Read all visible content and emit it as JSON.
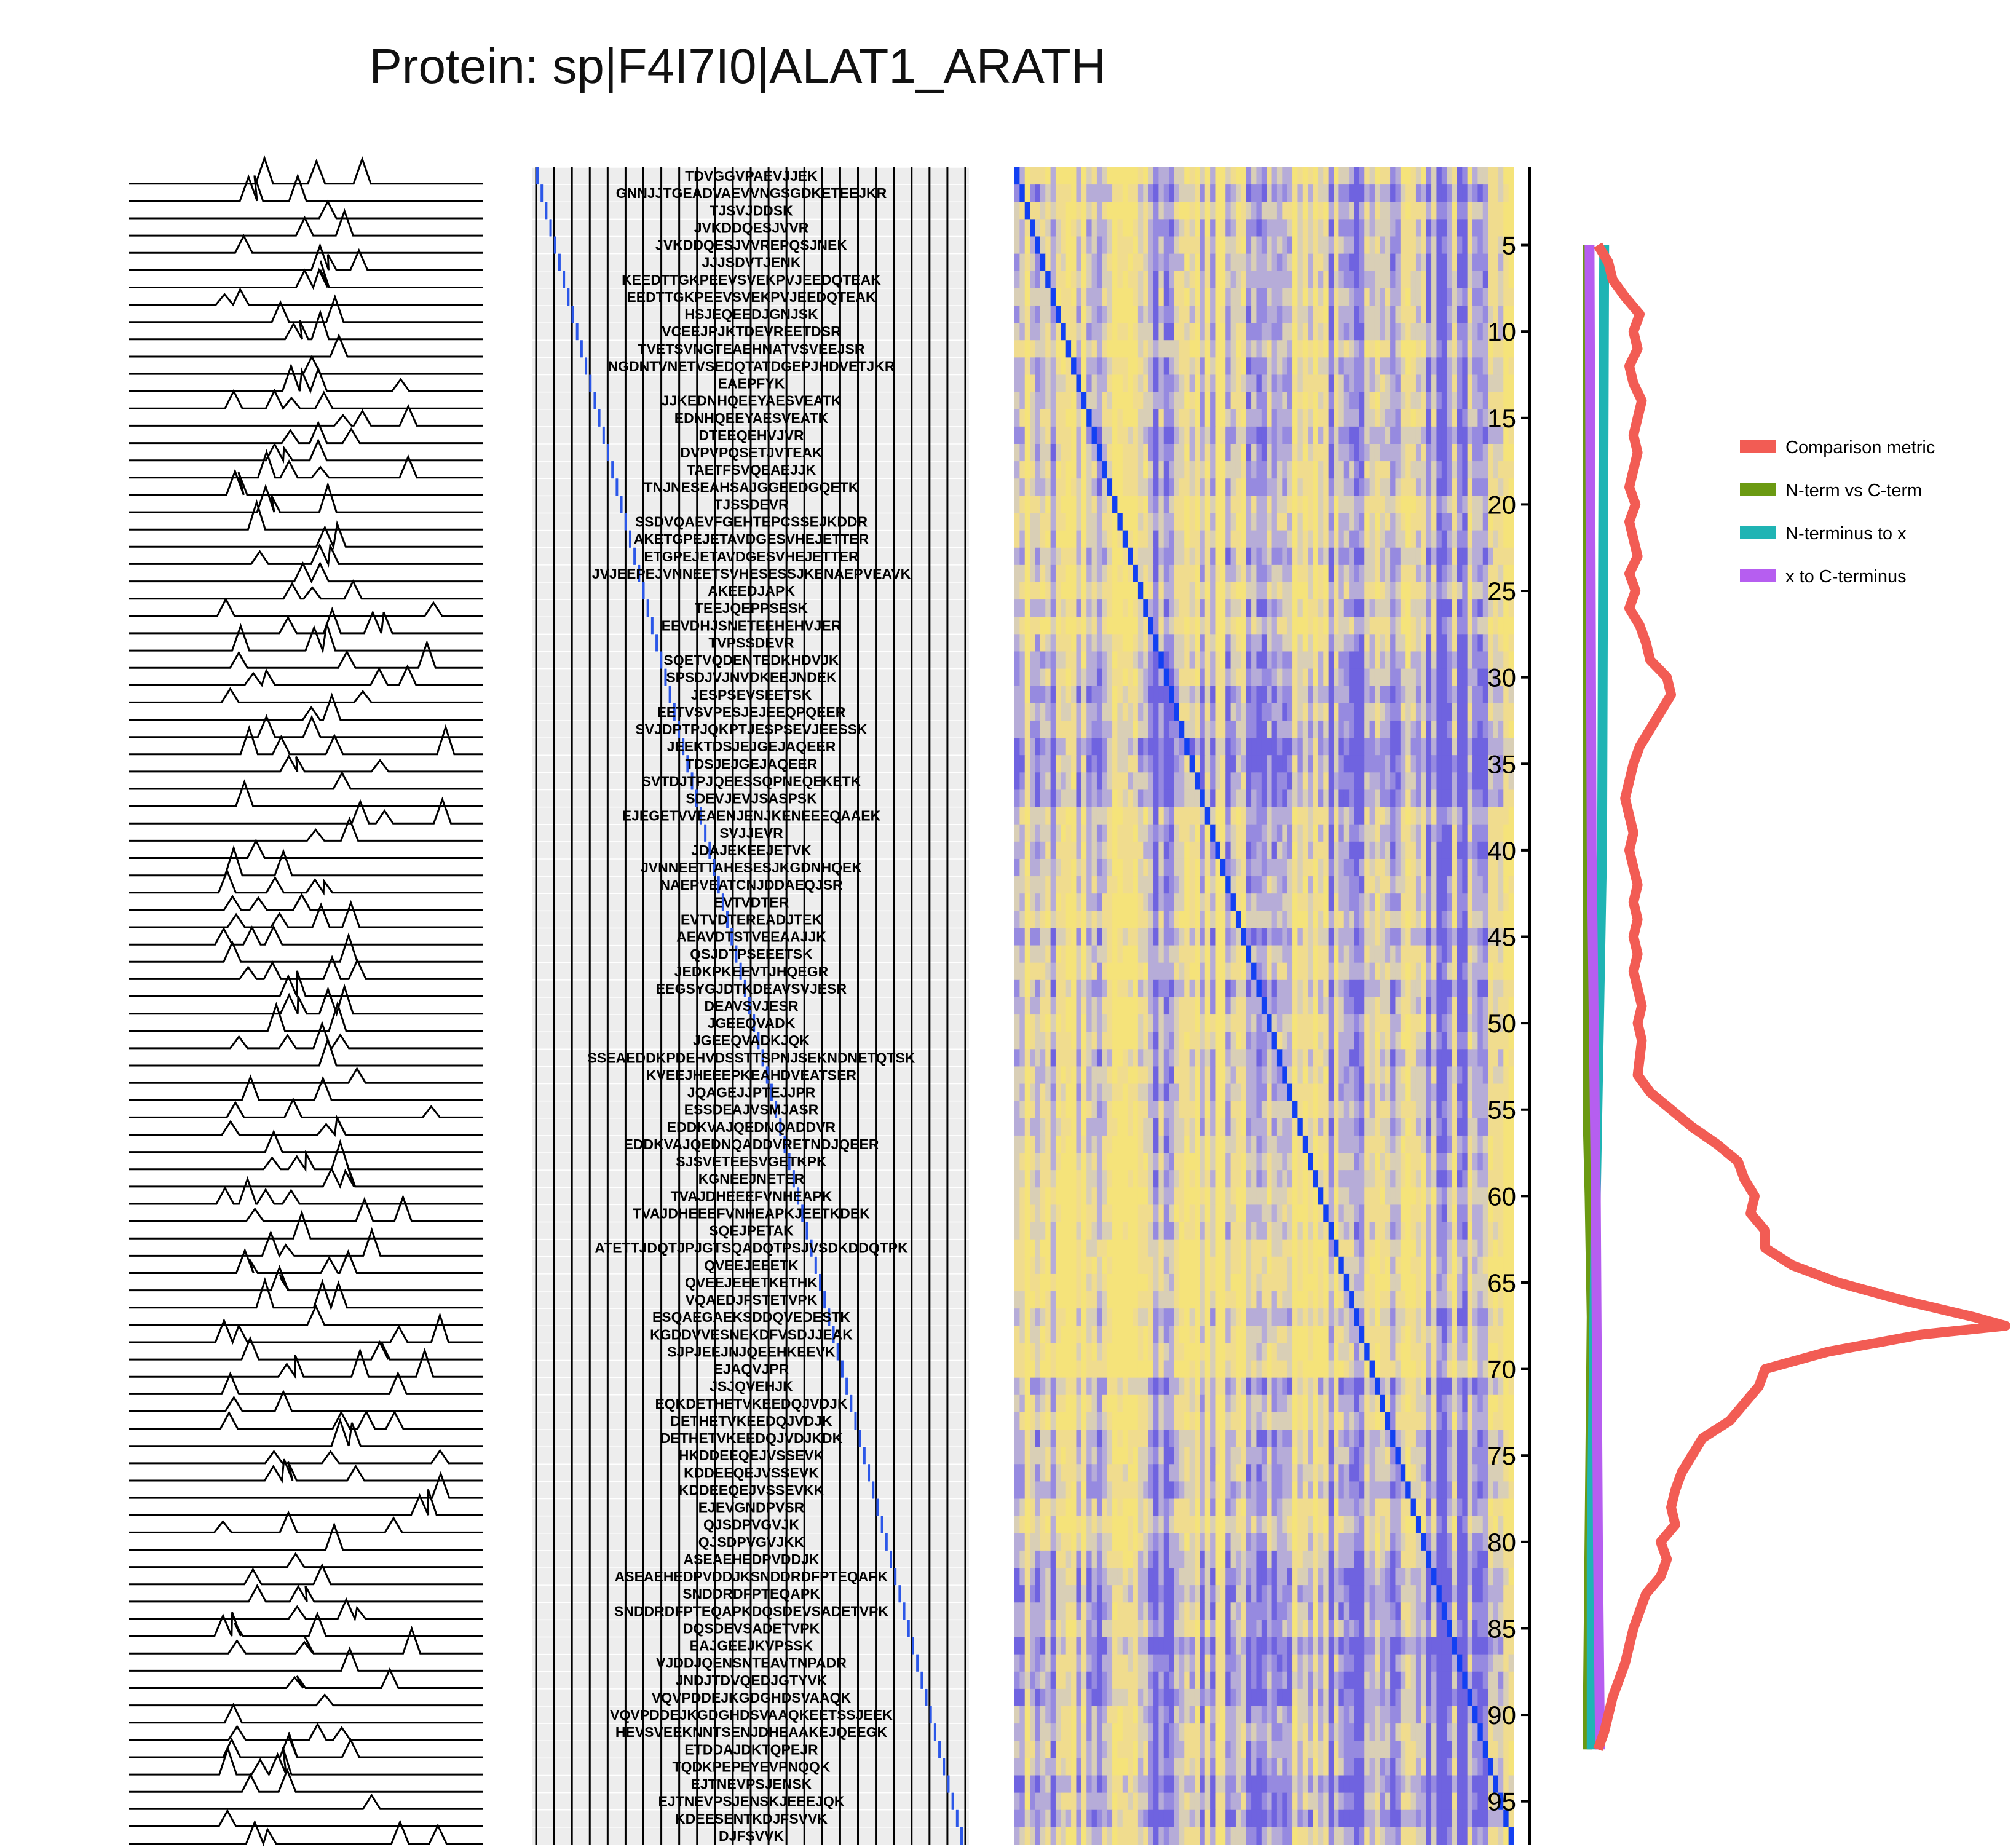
{
  "chart_data": {
    "type": "heatmap",
    "title": "Protein: sp|F4I7I0|ALAT1_ARATH",
    "peptides": [
      "TDVGGVPAEVJJEK",
      "GNNJJTGEADVAEVVNGSGDKETEEJKR",
      "TJSVJDDSK",
      "JVKDDQESJVVR",
      "JVKDDQESJVVREPQSJNEK",
      "JJJSDVTJENK",
      "KEEDTTGKPEEVSVEKPVJEEDQTEAK",
      "EEDTTGKPEEVSVEKPVJEEDQTEAK",
      "HSJEQEEDJGNJSK",
      "VCEEJPJKTDEVREETDSR",
      "TVETSVNGTEAEHNATVSVEEJSR",
      "NGDNTVNETVSEDQTATDGEPJHDVETJKR",
      "EAEPFYK",
      "JJKEDNHQEEYAESVEATK",
      "EDNHQEEYAESVEATK",
      "DTEEQEHVJVR",
      "DVPVPQSETJVTEAK",
      "TAETFSVQEAEJJK",
      "TNJNESEAHSAJGGEEDGQETK",
      "TJSSDEVR",
      "SSDVQAEVFGEHTEPCSSEJKDDR",
      "AKETGPEJETAVDGESVHEJETTER",
      "ETGPEJETAVDGESVHEJETTER",
      "JVJEEPEJVNNEETSVHESESSJKENAEPVEAVK",
      "AKEEDJAPK",
      "TEEJQEPPSESK",
      "EEVDHJSNETEEHEHVJER",
      "TVPSSDEVR",
      "SQETVQDENTEDKHDVJK",
      "SPSDJVJNVDKEEJNDEK",
      "JESPSEVSEETSK",
      "EETVSVPESJEJEEQPQEER",
      "SVJDPTPJQKPTJESPSEVJEESSK",
      "JEEKTDSJEJGEJAQEER",
      "TDSJEJGEJAQEER",
      "SVTDJTPJQEESSQPNEQEKETK",
      "SDEVJEVJSASPSK",
      "EJEGETVVEAENJENJKENEEEQAAEK",
      "SVJJEVR",
      "JDAJEKEEJETVK",
      "JVNNEETTAHESESJKGDNHQEK",
      "NAEPVEATCNJDDAEQJSR",
      "EVTVDTER",
      "EVTVDTEREADJTEK",
      "AEAVDTSTVEEAAJJK",
      "QSJDTPSEEETSK",
      "JEDKPKEEVTJHQEGR",
      "EEGSYGJDTKDEAVSVJESR",
      "DEAVSVJESR",
      "JGEEQVADK",
      "JGEEQVADKJQK",
      "SSEAEDDKPDEHVDSSTTSPNJSEKNDNETQTSK",
      "KVEEJHEEEPKEAHDVEATSER",
      "JQAGEJJPTEJJPR",
      "ESSDEAJVSMJASR",
      "EDDKVAJQEDNQADDVR",
      "EDDKVAJQEDNQADDVRETNDJQEER",
      "SJSVETEESVGETKPK",
      "KGNEEJNETER",
      "TVAJDHEEEFVNHEAPK",
      "TVAJDHEEEFVNHEAPKJEETKDEK",
      "SQEJPETAK",
      "ATETTJDQTJPJGTSQADQTPSJVSDKDDQTPK",
      "QVEEJEEETK",
      "QVEEJEEETKETHK",
      "VQAEDJFSTETVPK",
      "ESQAEGAEKSDDQVEDESTK",
      "KGDDVVESNEKDFVSDJJEAK",
      "SJPJEEJNJQEEHKEEVK",
      "EJAQVJPR",
      "JSJQVEHJK",
      "EQKDETHETVKEEDQJVDJK",
      "DETHETVKEEDQJVDJK",
      "DETHETVKEEDQJVDJKDK",
      "HKDDEEQEJVSSEVK",
      "KDDEEQEJVSSEVK",
      "KDDEEQEJVSSEVKK",
      "EJEVGNDPVSR",
      "QJSDPVGVJK",
      "QJSDPVGVJKK",
      "ASEAEHEDPVDDJK",
      "ASEAEHEDPVDDJKSNDDRDFPTEQAPK",
      "SNDDRDFPTEQAPK",
      "SNDDRDFPTEQAPKDQSDEVSADETVPK",
      "DQSDEVSADETVPK",
      "EAJGEEJKVPSSK",
      "VJDDJQENSNTEAVTNPADR",
      "JNDJTDVQEDJGTYVK",
      "VQVPDDEJKGDGHDSVAAQK",
      "VQVPDDEJKGDGHDSVAAQKEETSSJEEK",
      "HEVSVEEKNNTSENJDHEAAKEJQEEGK",
      "ETDDAJDKTQPEJR",
      "TQDKPEPEYEVPNQQK",
      "EJTNEVPSJENSK",
      "EJTNEVPSJENSKJEEEJQK",
      "KDEESENTKDJFSVVK",
      "DJFSVVK"
    ],
    "y_ticks": [
      5,
      10,
      15,
      20,
      25,
      30,
      35,
      40,
      45,
      50,
      55,
      60,
      65,
      70,
      75,
      80,
      85,
      90,
      95
    ],
    "ylim": [
      1,
      97
    ],
    "heatmap_colors": {
      "low": "#f5e37a",
      "mid": "#b6acd8",
      "high": "#6f63e0",
      "diagonal": "#1240f2"
    },
    "series": [
      {
        "name": "Comparison metric",
        "color": "#f25c54",
        "values": [
          {
            "y": 5,
            "x": 0.05
          },
          {
            "y": 6,
            "x": 0.1
          },
          {
            "y": 7,
            "x": 0.12
          },
          {
            "y": 8,
            "x": 0.18
          },
          {
            "y": 9,
            "x": 0.25
          },
          {
            "y": 10,
            "x": 0.22
          },
          {
            "y": 11,
            "x": 0.24
          },
          {
            "y": 12,
            "x": 0.2
          },
          {
            "y": 13,
            "x": 0.22
          },
          {
            "y": 14,
            "x": 0.26
          },
          {
            "y": 15,
            "x": 0.24
          },
          {
            "y": 16,
            "x": 0.22
          },
          {
            "y": 17,
            "x": 0.24
          },
          {
            "y": 18,
            "x": 0.22
          },
          {
            "y": 19,
            "x": 0.2
          },
          {
            "y": 20,
            "x": 0.23
          },
          {
            "y": 21,
            "x": 0.2
          },
          {
            "y": 22,
            "x": 0.22
          },
          {
            "y": 23,
            "x": 0.24
          },
          {
            "y": 24,
            "x": 0.2
          },
          {
            "y": 25,
            "x": 0.23
          },
          {
            "y": 26,
            "x": 0.2
          },
          {
            "y": 27,
            "x": 0.25
          },
          {
            "y": 28,
            "x": 0.28
          },
          {
            "y": 29,
            "x": 0.3
          },
          {
            "y": 30,
            "x": 0.38
          },
          {
            "y": 31,
            "x": 0.4
          },
          {
            "y": 32,
            "x": 0.35
          },
          {
            "y": 33,
            "x": 0.3
          },
          {
            "y": 34,
            "x": 0.25
          },
          {
            "y": 35,
            "x": 0.22
          },
          {
            "y": 36,
            "x": 0.2
          },
          {
            "y": 37,
            "x": 0.18
          },
          {
            "y": 38,
            "x": 0.2
          },
          {
            "y": 39,
            "x": 0.22
          },
          {
            "y": 40,
            "x": 0.2
          },
          {
            "y": 41,
            "x": 0.22
          },
          {
            "y": 42,
            "x": 0.24
          },
          {
            "y": 43,
            "x": 0.22
          },
          {
            "y": 44,
            "x": 0.24
          },
          {
            "y": 45,
            "x": 0.22
          },
          {
            "y": 46,
            "x": 0.24
          },
          {
            "y": 47,
            "x": 0.22
          },
          {
            "y": 48,
            "x": 0.24
          },
          {
            "y": 49,
            "x": 0.26
          },
          {
            "y": 50,
            "x": 0.24
          },
          {
            "y": 51,
            "x": 0.26
          },
          {
            "y": 52,
            "x": 0.25
          },
          {
            "y": 53,
            "x": 0.24
          },
          {
            "y": 54,
            "x": 0.3
          },
          {
            "y": 55,
            "x": 0.4
          },
          {
            "y": 56,
            "x": 0.5
          },
          {
            "y": 57,
            "x": 0.62
          },
          {
            "y": 58,
            "x": 0.72
          },
          {
            "y": 59,
            "x": 0.75
          },
          {
            "y": 60,
            "x": 0.8
          },
          {
            "y": 61,
            "x": 0.78
          },
          {
            "y": 62,
            "x": 0.85
          },
          {
            "y": 63,
            "x": 0.85
          },
          {
            "y": 64,
            "x": 0.98
          },
          {
            "y": 65,
            "x": 1.2
          },
          {
            "y": 66,
            "x": 1.5
          },
          {
            "y": 67,
            "x": 1.85
          },
          {
            "y": 67.5,
            "x": 2.0
          },
          {
            "y": 68,
            "x": 1.6
          },
          {
            "y": 69,
            "x": 1.15
          },
          {
            "y": 70,
            "x": 0.85
          },
          {
            "y": 71,
            "x": 0.82
          },
          {
            "y": 72,
            "x": 0.75
          },
          {
            "y": 73,
            "x": 0.68
          },
          {
            "y": 74,
            "x": 0.55
          },
          {
            "y": 75,
            "x": 0.5
          },
          {
            "y": 76,
            "x": 0.45
          },
          {
            "y": 77,
            "x": 0.42
          },
          {
            "y": 78,
            "x": 0.4
          },
          {
            "y": 79,
            "x": 0.42
          },
          {
            "y": 80,
            "x": 0.35
          },
          {
            "y": 81,
            "x": 0.38
          },
          {
            "y": 82,
            "x": 0.35
          },
          {
            "y": 83,
            "x": 0.28
          },
          {
            "y": 84,
            "x": 0.25
          },
          {
            "y": 85,
            "x": 0.22
          },
          {
            "y": 86,
            "x": 0.2
          },
          {
            "y": 87,
            "x": 0.18
          },
          {
            "y": 88,
            "x": 0.15
          },
          {
            "y": 89,
            "x": 0.12
          },
          {
            "y": 90,
            "x": 0.1
          },
          {
            "y": 91,
            "x": 0.08
          },
          {
            "y": 92,
            "x": 0.05
          }
        ]
      },
      {
        "name": "N-term vs C-term",
        "color": "#6b9a12",
        "values": [
          {
            "y": 5,
            "x": 0.0
          },
          {
            "y": 55,
            "x": 0.0
          },
          {
            "y": 60,
            "x": 0.01
          },
          {
            "y": 67,
            "x": 0.02
          },
          {
            "y": 92,
            "x": 0.0
          }
        ]
      },
      {
        "name": "N-terminus to x",
        "color": "#1fb4b4",
        "values": [
          {
            "y": 5,
            "x": 0.08
          },
          {
            "y": 40,
            "x": 0.07
          },
          {
            "y": 60,
            "x": 0.04
          },
          {
            "y": 80,
            "x": 0.02
          },
          {
            "y": 92,
            "x": 0.02
          }
        ]
      },
      {
        "name": "x to C-terminus",
        "color": "#b65ef0",
        "values": [
          {
            "y": 5,
            "x": 0.01
          },
          {
            "y": 40,
            "x": 0.02
          },
          {
            "y": 60,
            "x": 0.04
          },
          {
            "y": 80,
            "x": 0.05
          },
          {
            "y": 92,
            "x": 0.06
          }
        ]
      }
    ],
    "legend": {
      "placement": "right"
    }
  }
}
